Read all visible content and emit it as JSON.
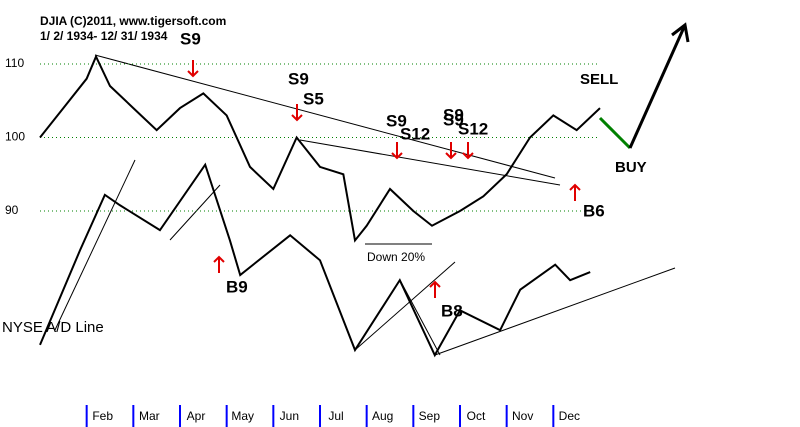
{
  "chart_data": {
    "type": "line",
    "title": "DJIA",
    "subtitle": "(C)2011, www.tigersoft.com",
    "date_range": "1/ 2/ 1934- 12/ 31/ 1934",
    "xlim": [
      0,
      12
    ],
    "xticks": [
      {
        "value": 1,
        "label": "Feb"
      },
      {
        "value": 2,
        "label": "Mar"
      },
      {
        "value": 3,
        "label": "Apr"
      },
      {
        "value": 4,
        "label": "May"
      },
      {
        "value": 5,
        "label": "Jun"
      },
      {
        "value": 6,
        "label": "Jul"
      },
      {
        "value": 7,
        "label": "Aug"
      },
      {
        "value": 8,
        "label": "Sep"
      },
      {
        "value": 9,
        "label": "Oct"
      },
      {
        "value": 10,
        "label": "Nov"
      },
      {
        "value": 11,
        "label": "Dec"
      }
    ],
    "ylim": [
      64.3,
      118.7
    ],
    "yticks": [
      90,
      100,
      110
    ],
    "grid": true,
    "series": [
      {
        "name": "DJIA",
        "color": "#000000",
        "x": [
          0,
          0.5,
          1.0,
          1.2,
          1.5,
          2.0,
          2.5,
          3.0,
          3.5,
          4.0,
          4.5,
          5.0,
          5.5,
          6.0,
          6.5,
          6.75,
          7.0,
          7.5,
          8.0,
          8.4,
          9.0,
          9.5,
          10.0,
          10.5,
          11.0,
          11.5,
          12.0
        ],
        "values": [
          100,
          104,
          108,
          111,
          107,
          104,
          101,
          104,
          106,
          103,
          96,
          93,
          100,
          96,
          95,
          86,
          88,
          93,
          90,
          88,
          90,
          92,
          95,
          100,
          103,
          101,
          104
        ]
      },
      {
        "name": "NYSE A/D Line",
        "color": "#000000",
        "x": [
          0,
          0.86,
          1.39,
          1.71,
          2.57,
          3.54,
          4.07,
          4.29,
          5.36,
          6.0,
          6.75,
          7.71,
          8.46,
          9.0,
          9.86,
          10.29,
          11.04,
          11.36,
          11.79
        ],
        "values": [
          71.8,
          84.7,
          92.2,
          90.8,
          87.4,
          96.3,
          86,
          81.3,
          86.7,
          83.3,
          71.1,
          80.6,
          70.4,
          76.5,
          73.8,
          79.3,
          82.7,
          80.6,
          81.7
        ]
      }
    ],
    "annotations": [
      "S9",
      "S9",
      "S5",
      "S9",
      "S12",
      "S9",
      "S9",
      "S12",
      "SELL",
      "BUY",
      "B6",
      "B9",
      "B8",
      "Down 20%"
    ]
  }
}
